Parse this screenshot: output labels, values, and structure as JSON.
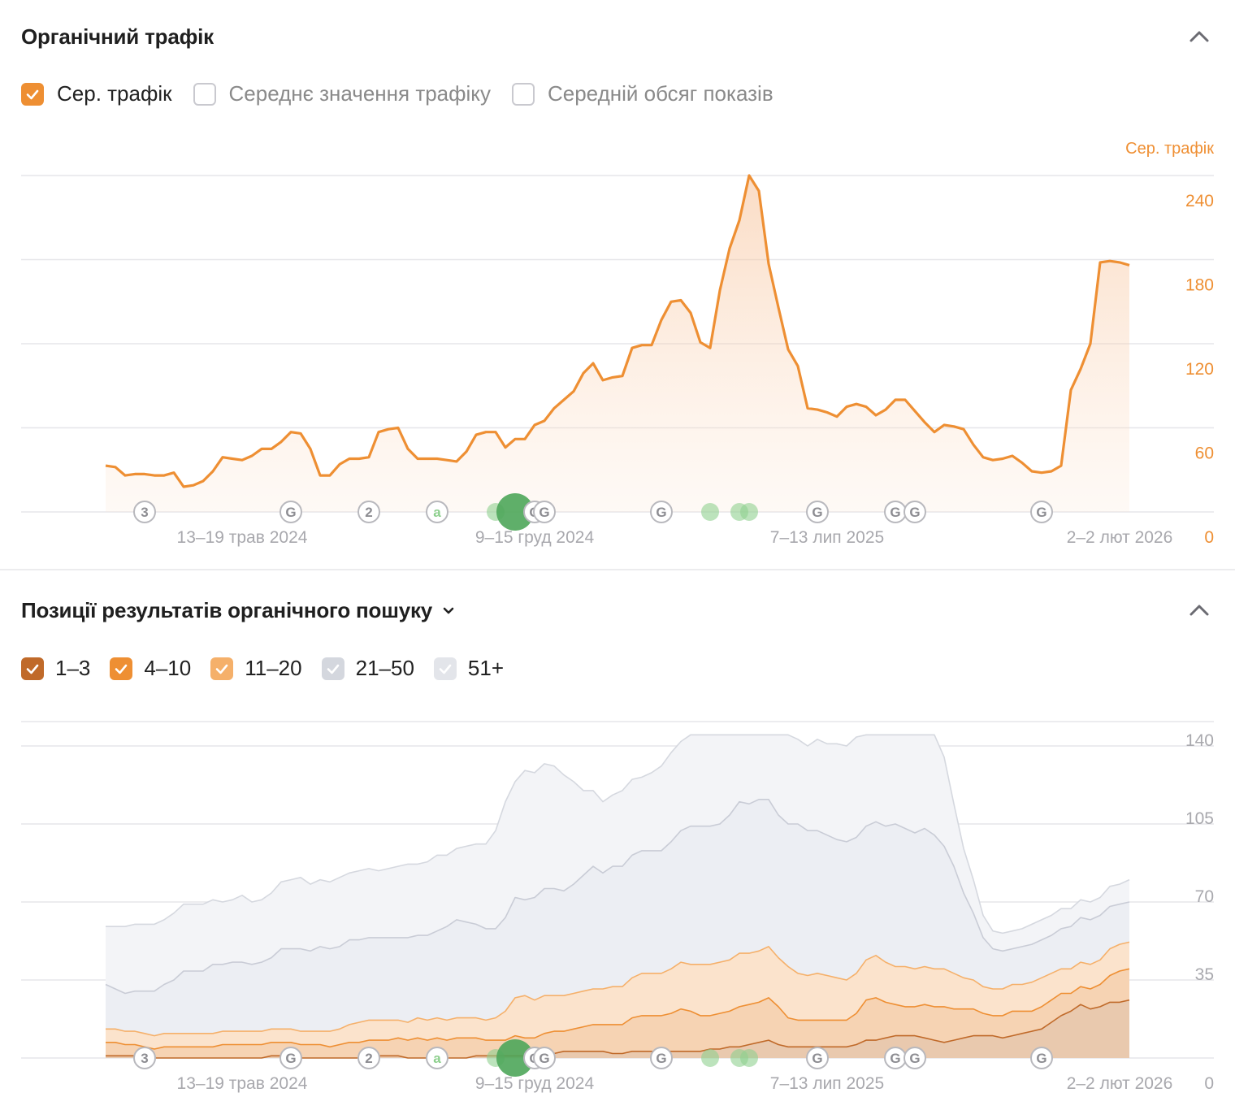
{
  "colors": {
    "traffic": "#ee8f33",
    "pos_1_3": "#c06a2a",
    "pos_4_10": "#ee8f33",
    "pos_11_20": "#f5b06a",
    "pos_21_50": "#c9ccd6",
    "pos_51_plus": "#e1e3ea",
    "grid": "#e6e6ea",
    "axis_text": "#a8a8ad",
    "marker_green": "#4ea65a"
  },
  "traffic_panel": {
    "title": "Органічний трафік",
    "collapse_icon": "chevron-up-icon",
    "legend": [
      {
        "label": "Сер. трафік",
        "checked": true,
        "color": "#ee8f33"
      },
      {
        "label": "Середнє значення трафіку",
        "checked": false
      },
      {
        "label": "Середній обсяг показів",
        "checked": false
      }
    ],
    "axis_title": "Сер. трафік"
  },
  "positions_panel": {
    "title": "Позиції результатів органічного пошуку",
    "dropdown_icon": "chevron-down-icon",
    "collapse_icon": "chevron-up-icon",
    "legend": [
      {
        "label": "1–3",
        "checked": true,
        "color": "#c06a2a"
      },
      {
        "label": "4–10",
        "checked": true,
        "color": "#ee8f33"
      },
      {
        "label": "11–20",
        "checked": true,
        "color": "#f5b06a"
      },
      {
        "label": "21–50",
        "checked": true,
        "color": "#d4d7de"
      },
      {
        "label": "51+",
        "checked": true,
        "color": "#e3e5ea"
      }
    ]
  },
  "chart_data": [
    {
      "type": "area",
      "title": "Органічний трафік",
      "ylabel": "Сер. трафік",
      "ylim": [
        0,
        240
      ],
      "yticks": [
        0,
        60,
        120,
        180,
        240
      ],
      "x_tick_labels": [
        "13–19 трав 2024",
        "9–15 груд 2024",
        "7–13 лип 2025",
        "2–2 лют 2026"
      ],
      "x_tick_index": [
        14,
        44,
        74,
        104
      ],
      "grid": true,
      "series": [
        {
          "name": "Сер. трафік",
          "values": [
            33,
            32,
            26,
            27,
            27,
            26,
            26,
            28,
            18,
            19,
            22,
            29,
            39,
            38,
            37,
            40,
            45,
            45,
            50,
            57,
            56,
            45,
            26,
            26,
            34,
            38,
            38,
            39,
            57,
            59,
            60,
            45,
            38,
            38,
            38,
            37,
            36,
            43,
            55,
            57,
            57,
            46,
            52,
            52,
            62,
            65,
            74,
            80,
            86,
            99,
            106,
            94,
            96,
            97,
            117,
            119,
            119,
            137,
            150,
            151,
            142,
            121,
            117,
            158,
            188,
            208,
            240,
            229,
            177,
            146,
            116,
            104,
            74,
            73,
            71,
            68,
            75,
            77,
            75,
            69,
            73,
            80,
            80,
            72,
            64,
            57,
            62,
            61,
            59,
            48,
            39,
            37,
            38,
            40,
            35,
            29,
            28,
            29,
            33,
            87,
            102,
            120,
            178,
            179,
            178,
            176
          ]
        }
      ],
      "events": [
        {
          "label": "3",
          "kind": "number",
          "index": 4
        },
        {
          "label": "G",
          "kind": "google",
          "index": 19
        },
        {
          "label": "2",
          "kind": "number",
          "index": 27
        },
        {
          "label": "a",
          "kind": "letter",
          "index": 34
        },
        {
          "label": "",
          "kind": "green",
          "index": 40
        },
        {
          "label": "",
          "kind": "green-big",
          "index": 42
        },
        {
          "label": "G",
          "kind": "google",
          "index": 44
        },
        {
          "label": "G",
          "kind": "google",
          "index": 45
        },
        {
          "label": "G",
          "kind": "google",
          "index": 57
        },
        {
          "label": "",
          "kind": "green",
          "index": 62
        },
        {
          "label": "",
          "kind": "green",
          "index": 65
        },
        {
          "label": "",
          "kind": "green",
          "index": 66
        },
        {
          "label": "G",
          "kind": "google",
          "index": 73
        },
        {
          "label": "G",
          "kind": "google",
          "index": 81
        },
        {
          "label": "G",
          "kind": "google",
          "index": 83
        },
        {
          "label": "G",
          "kind": "google",
          "index": 96
        }
      ]
    },
    {
      "type": "area",
      "title": "Позиції результатів органічного пошуку",
      "ylim": [
        0,
        140
      ],
      "yticks": [
        0,
        35,
        70,
        105,
        140
      ],
      "x_tick_labels": [
        "13–19 трав 2024",
        "9–15 груд 2024",
        "7–13 лип 2025",
        "2–2 лют 2026"
      ],
      "x_tick_index": [
        14,
        44,
        74,
        104
      ],
      "grid": true,
      "stacked": true,
      "series": [
        {
          "name": "1–3",
          "values": [
            1,
            1,
            1,
            1,
            0,
            0,
            0,
            0,
            0,
            0,
            0,
            0,
            0,
            0,
            0,
            0,
            0,
            1,
            1,
            1,
            0,
            0,
            0,
            0,
            0,
            0,
            0,
            0,
            1,
            1,
            1,
            0,
            0,
            0,
            0,
            0,
            0,
            0,
            1,
            1,
            1,
            1,
            1,
            1,
            1,
            2,
            2,
            3,
            3,
            3,
            3,
            3,
            2,
            2,
            3,
            3,
            3,
            3,
            3,
            3,
            3,
            3,
            4,
            4,
            5,
            5,
            6,
            7,
            8,
            6,
            5,
            5,
            5,
            5,
            5,
            5,
            5,
            6,
            8,
            8,
            9,
            10,
            10,
            10,
            9,
            8,
            7,
            8,
            9,
            10,
            10,
            10,
            9,
            10,
            11,
            12,
            13,
            16,
            19,
            21,
            24,
            22,
            23,
            25,
            25,
            26
          ]
        },
        {
          "name": "4–10",
          "values": [
            6,
            6,
            5,
            5,
            5,
            4,
            5,
            5,
            5,
            5,
            5,
            5,
            6,
            6,
            6,
            6,
            6,
            6,
            6,
            6,
            6,
            6,
            6,
            5,
            6,
            7,
            7,
            8,
            7,
            7,
            8,
            8,
            9,
            8,
            9,
            8,
            9,
            9,
            8,
            7,
            7,
            7,
            9,
            8,
            8,
            9,
            10,
            9,
            10,
            11,
            12,
            12,
            13,
            13,
            15,
            16,
            16,
            16,
            17,
            19,
            18,
            16,
            15,
            16,
            16,
            18,
            18,
            18,
            19,
            17,
            13,
            12,
            12,
            12,
            12,
            12,
            12,
            14,
            18,
            19,
            16,
            14,
            13,
            13,
            15,
            15,
            16,
            14,
            13,
            12,
            10,
            9,
            10,
            11,
            10,
            9,
            10,
            10,
            10,
            8,
            8,
            9,
            10,
            12,
            14,
            14
          ]
        },
        {
          "name": "11–20",
          "values": [
            6,
            6,
            6,
            6,
            6,
            6,
            6,
            6,
            6,
            6,
            6,
            6,
            6,
            6,
            6,
            6,
            6,
            6,
            6,
            6,
            6,
            6,
            6,
            7,
            7,
            8,
            9,
            9,
            9,
            9,
            8,
            8,
            9,
            9,
            9,
            9,
            9,
            9,
            9,
            9,
            10,
            13,
            17,
            19,
            17,
            17,
            16,
            16,
            16,
            16,
            16,
            16,
            17,
            17,
            18,
            19,
            19,
            19,
            20,
            21,
            21,
            23,
            23,
            23,
            23,
            24,
            23,
            23,
            23,
            22,
            23,
            21,
            20,
            21,
            20,
            19,
            18,
            18,
            18,
            19,
            18,
            17,
            18,
            17,
            17,
            17,
            17,
            16,
            14,
            13,
            12,
            12,
            12,
            12,
            12,
            13,
            13,
            12,
            11,
            11,
            11,
            11,
            11,
            12,
            12,
            12
          ]
        },
        {
          "name": "21–50",
          "values": [
            20,
            18,
            17,
            18,
            19,
            20,
            22,
            24,
            28,
            28,
            28,
            31,
            30,
            31,
            31,
            30,
            31,
            32,
            36,
            36,
            37,
            36,
            38,
            37,
            37,
            38,
            37,
            37,
            37,
            37,
            37,
            38,
            37,
            38,
            39,
            42,
            44,
            43,
            42,
            41,
            40,
            42,
            45,
            43,
            46,
            48,
            48,
            47,
            49,
            52,
            55,
            52,
            54,
            54,
            55,
            55,
            55,
            55,
            57,
            59,
            62,
            62,
            62,
            62,
            65,
            68,
            67,
            68,
            66,
            64,
            64,
            67,
            65,
            64,
            63,
            62,
            62,
            61,
            60,
            60,
            61,
            64,
            62,
            61,
            62,
            60,
            55,
            48,
            38,
            30,
            22,
            18,
            17,
            16,
            17,
            17,
            17,
            17,
            18,
            19,
            20,
            20,
            20,
            19,
            18,
            18
          ]
        },
        {
          "name": "51+",
          "values": [
            26,
            28,
            30,
            30,
            30,
            30,
            29,
            30,
            30,
            30,
            30,
            29,
            28,
            28,
            30,
            28,
            28,
            29,
            30,
            31,
            32,
            30,
            30,
            30,
            31,
            30,
            31,
            31,
            30,
            31,
            32,
            33,
            32,
            33,
            34,
            32,
            32,
            34,
            36,
            38,
            44,
            52,
            52,
            58,
            56,
            56,
            55,
            52,
            46,
            38,
            34,
            32,
            32,
            34,
            34,
            33,
            35,
            38,
            40,
            40,
            41,
            43,
            41,
            41,
            42,
            42,
            41,
            40,
            39,
            40,
            40,
            38,
            38,
            41,
            41,
            43,
            43,
            45,
            44,
            46,
            48,
            47,
            48,
            46,
            47,
            50,
            40,
            28,
            20,
            15,
            10,
            8,
            8,
            8,
            8,
            9,
            9,
            9,
            9,
            8,
            8,
            8,
            8,
            9,
            9,
            10
          ]
        }
      ],
      "events": [
        {
          "label": "3",
          "kind": "number",
          "index": 4
        },
        {
          "label": "G",
          "kind": "google",
          "index": 19
        },
        {
          "label": "2",
          "kind": "number",
          "index": 27
        },
        {
          "label": "a",
          "kind": "letter",
          "index": 34
        },
        {
          "label": "",
          "kind": "green",
          "index": 40
        },
        {
          "label": "",
          "kind": "green-big",
          "index": 42
        },
        {
          "label": "G",
          "kind": "google",
          "index": 44
        },
        {
          "label": "G",
          "kind": "google",
          "index": 45
        },
        {
          "label": "G",
          "kind": "google",
          "index": 57
        },
        {
          "label": "",
          "kind": "green",
          "index": 62
        },
        {
          "label": "",
          "kind": "green",
          "index": 65
        },
        {
          "label": "",
          "kind": "green",
          "index": 66
        },
        {
          "label": "G",
          "kind": "google",
          "index": 73
        },
        {
          "label": "G",
          "kind": "google",
          "index": 81
        },
        {
          "label": "G",
          "kind": "google",
          "index": 83
        },
        {
          "label": "G",
          "kind": "google",
          "index": 96
        }
      ]
    }
  ]
}
